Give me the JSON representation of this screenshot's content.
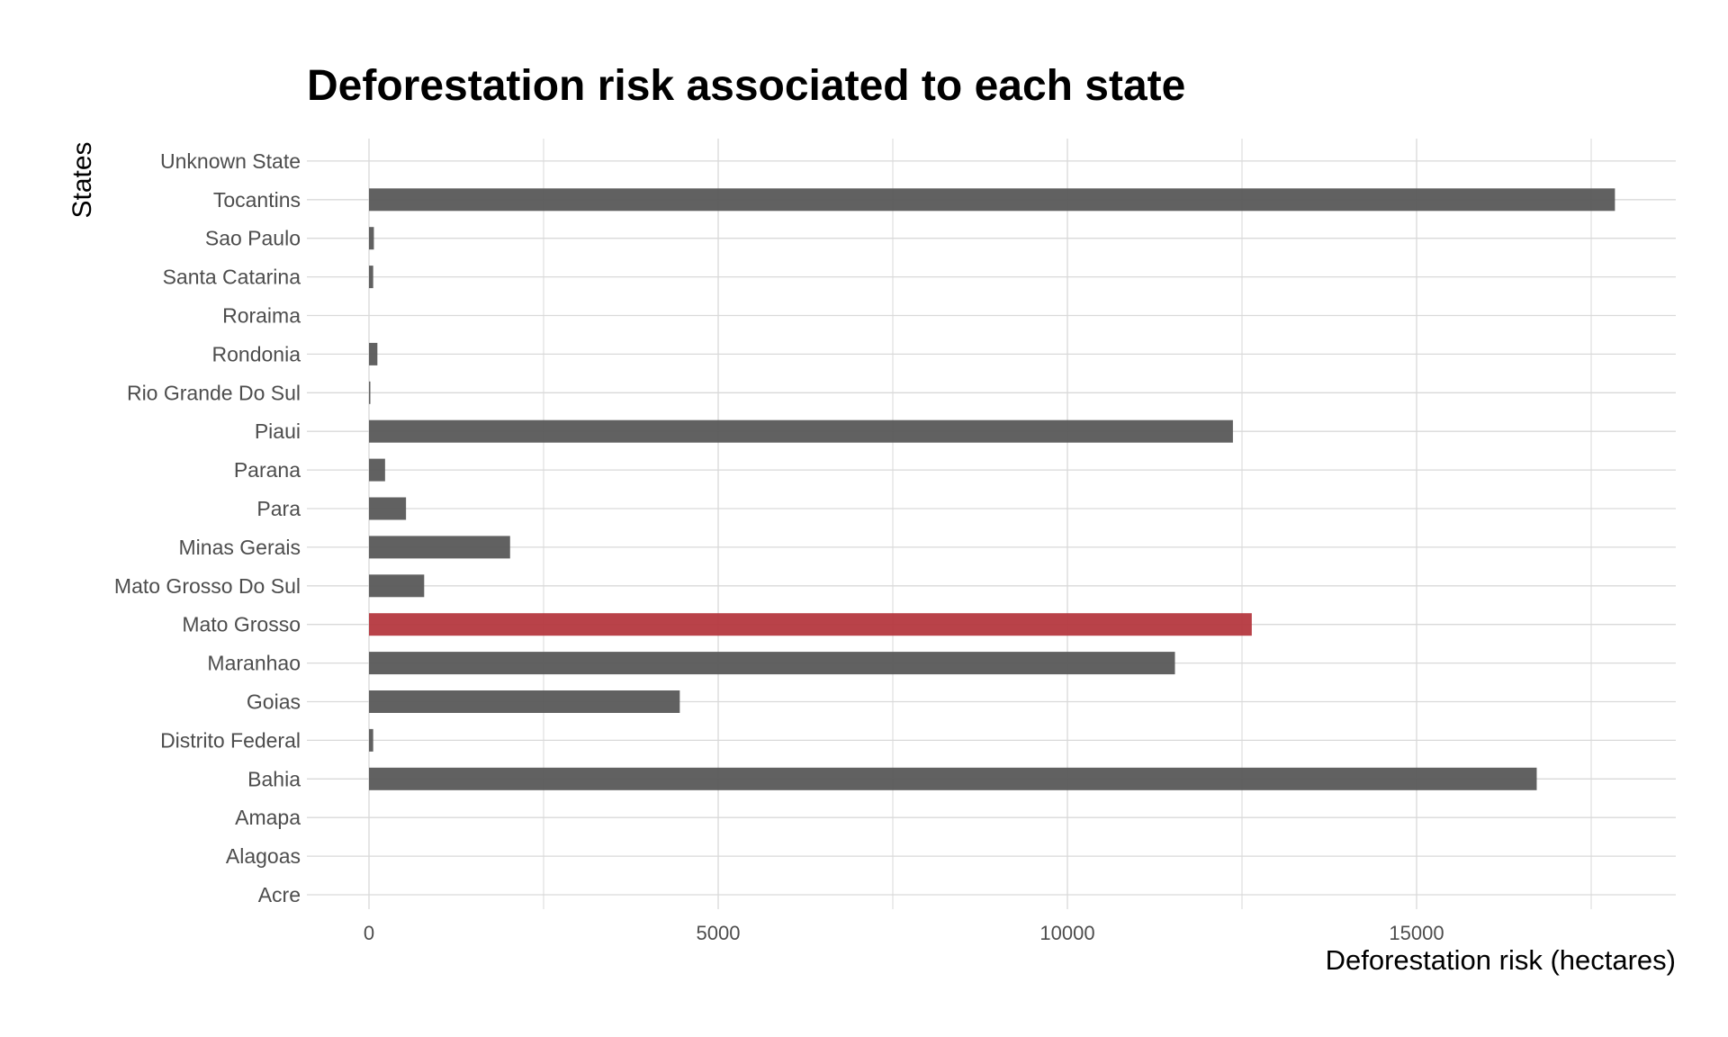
{
  "chart_data": {
    "type": "bar",
    "orientation": "horizontal",
    "title": "Deforestation risk associated to each state",
    "xlabel": "Deforestation risk (hectares)",
    "ylabel": "States",
    "categories": [
      "Acre",
      "Alagoas",
      "Amapa",
      "Bahia",
      "Distrito Federal",
      "Goias",
      "Maranhao",
      "Mato Grosso",
      "Mato Grosso Do Sul",
      "Minas Gerais",
      "Para",
      "Parana",
      "Piaui",
      "Rio Grande Do Sul",
      "Rondonia",
      "Roraima",
      "Santa Catarina",
      "Sao Paulo",
      "Tocantins",
      "Unknown State"
    ],
    "values": [
      0,
      0,
      0,
      16720,
      60,
      4450,
      11540,
      12640,
      790,
      2020,
      530,
      230,
      12370,
      10,
      120,
      0,
      60,
      70,
      17840,
      0
    ],
    "highlight_category": "Mato Grosso",
    "bar_color": "#595959",
    "highlight_color": "#b5383f",
    "xlim": [
      -1000,
      18750
    ],
    "xticks": [
      0,
      5000,
      10000,
      15000
    ],
    "xtick_labels": [
      "0",
      "5000",
      "10000",
      "15000"
    ],
    "grid": true,
    "grid_color": "#d9d9d9"
  }
}
